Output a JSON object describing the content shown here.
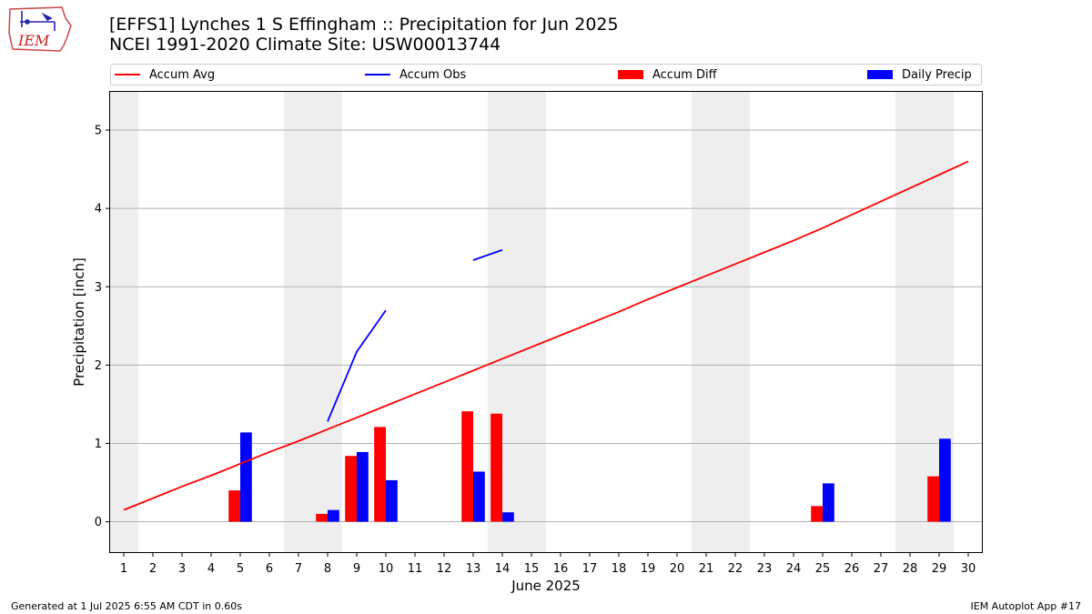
{
  "header": {
    "title_line1": "[EFFS1] Lynches 1 S Effingham :: Precipitation for Jun 2025",
    "title_line2": "NCEI 1991-2020 Climate Site: USW00013744"
  },
  "logo": {
    "text": "IEM"
  },
  "footer": {
    "left": "Generated at 1 Jul 2025 6:55 AM CDT in 0.60s",
    "right": "IEM Autoplot App #17"
  },
  "colors": {
    "avg": "#ff0000",
    "obs": "#0000ff",
    "diff": "#ff0000",
    "daily": "#0000ff",
    "weekend": "#eeeeee",
    "grid": "#b0b0b0"
  },
  "chart_data": {
    "type": "bar",
    "xlabel": "June 2025",
    "ylabel": "Precipitation [inch]",
    "xlim": [
      0.5,
      30.5
    ],
    "ylim": [
      -0.4,
      5.5
    ],
    "yticks": [
      0,
      1,
      2,
      3,
      4,
      5
    ],
    "x": [
      1,
      2,
      3,
      4,
      5,
      6,
      7,
      8,
      9,
      10,
      11,
      12,
      13,
      14,
      15,
      16,
      17,
      18,
      19,
      20,
      21,
      22,
      23,
      24,
      25,
      26,
      27,
      28,
      29,
      30
    ],
    "weekend_days": [
      1,
      7,
      8,
      14,
      15,
      21,
      22,
      28,
      29
    ],
    "legend": [
      {
        "label": "Accum Avg",
        "kind": "line",
        "color": "#ff0000"
      },
      {
        "label": "Accum Obs",
        "kind": "line",
        "color": "#0000ff"
      },
      {
        "label": "Accum Diff",
        "kind": "bar",
        "color": "#ff0000"
      },
      {
        "label": "Daily Precip",
        "kind": "bar",
        "color": "#0000ff"
      }
    ],
    "series": [
      {
        "name": "Accum Avg",
        "kind": "line",
        "values": [
          0.15,
          0.3,
          0.45,
          0.59,
          0.74,
          0.89,
          1.03,
          1.18,
          1.33,
          1.48,
          1.63,
          1.78,
          1.93,
          2.08,
          2.23,
          2.38,
          2.53,
          2.68,
          2.84,
          2.99,
          3.14,
          3.29,
          3.44,
          3.59,
          3.75,
          3.92,
          4.09,
          4.26,
          4.43,
          4.6
        ]
      },
      {
        "name": "Accum Obs",
        "kind": "line",
        "values": [
          null,
          null,
          null,
          null,
          null,
          null,
          null,
          1.28,
          2.17,
          2.7,
          null,
          null,
          3.34,
          3.47,
          null,
          null,
          null,
          null,
          null,
          null,
          null,
          null,
          null,
          null,
          null,
          null,
          null,
          null,
          null,
          null
        ]
      },
      {
        "name": "Accum Diff",
        "kind": "bar",
        "values": [
          0,
          0,
          0,
          0,
          0.4,
          0,
          0,
          0.1,
          0.84,
          1.21,
          0,
          0,
          1.41,
          1.38,
          0,
          0,
          0,
          0,
          0,
          0,
          0,
          0,
          0,
          0,
          0.2,
          0,
          0,
          0,
          0.58,
          0
        ]
      },
      {
        "name": "Daily Precip",
        "kind": "bar",
        "values": [
          0,
          0,
          0,
          0,
          1.14,
          0,
          0,
          0.15,
          0.89,
          0.53,
          0,
          0,
          0.64,
          0.12,
          0,
          0,
          0,
          0,
          0,
          0,
          0,
          0,
          0,
          0,
          0.49,
          0,
          0,
          0,
          1.06,
          0
        ]
      }
    ]
  }
}
